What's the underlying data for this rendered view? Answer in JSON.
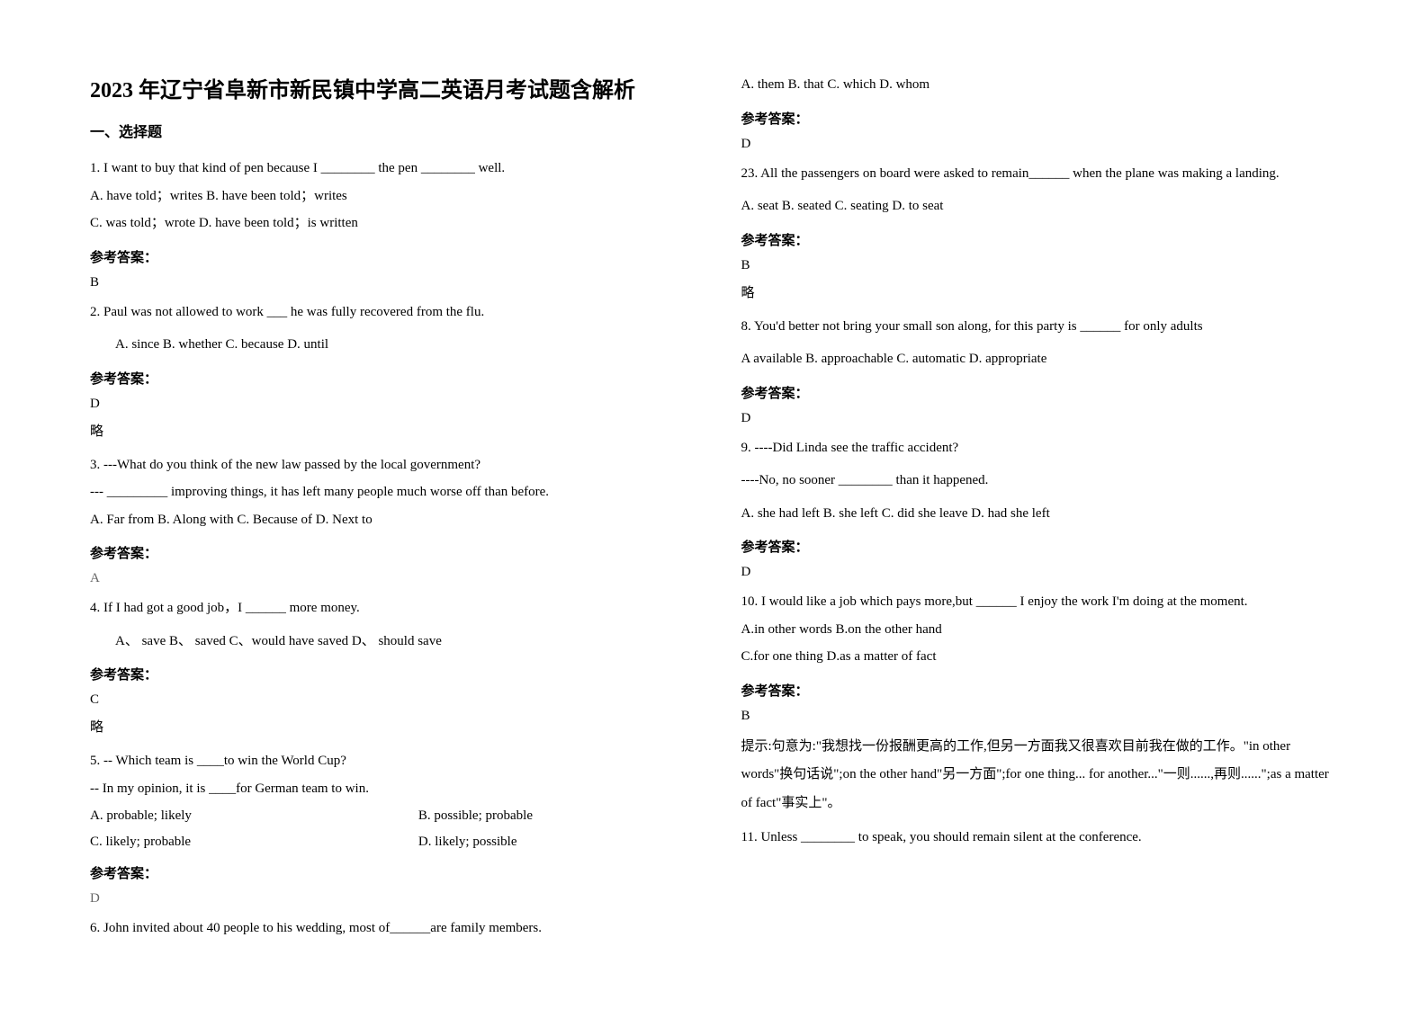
{
  "title": "2023 年辽宁省阜新市新民镇中学高二英语月考试题含解析",
  "section1": "一、选择题",
  "ans_label": "参考答案：",
  "略": "略",
  "left": {
    "q1": {
      "text": "1.  I want to buy that kind of pen because I ________ the pen ________ well.",
      "line2": "A. have told；writes   B. have been told；writes",
      "line3": "C. was told；wrote    D. have been told；is written",
      "ans": "B"
    },
    "q2": {
      "text": "2. Paul was not allowed to work ___ he was fully recovered from the flu.",
      "opts": "A. since         B. whether           C. because          D. until",
      "ans": "D"
    },
    "q3": {
      "text": "3. ---What do you think of the new law passed by the local government?",
      "line2": "    --- _________ improving things, it has left many people much worse off than before.",
      "opts": "    A. Far from                 B. Along with             C. Because of             D. Next to",
      "ans": "A"
    },
    "q4": {
      "text": "4. If I had got a good job，I ______ more money.",
      "opts": "A、 save             B、 saved        C、would have saved      D、 should save",
      "ans": "C"
    },
    "q5": {
      "text": "5. -- Which team is ____to win the World Cup?",
      "line2": "   -- In my opinion, it is ____for German team to win.",
      "optA": "     A. probable; likely",
      "optB": "B. possible; probable",
      "optC": "     C. likely; probable",
      "optD": "D. likely; possible",
      "ans": "D"
    },
    "q6": {
      "text": "6. John invited about 40 people to his wedding, most of______are family members."
    }
  },
  "right": {
    "q6opts": "   A. them        B. that   C. which         D. whom",
    "q6ans": "D",
    "q23": {
      "text": "23. All the passengers on board were asked to remain______ when the plane was making a landing.",
      "opts": "    A. seat            B. seated          C. seating          D. to seat",
      "ans": "B"
    },
    "q8": {
      "text": "8. You'd better not bring your small son along, for this party is ______ for only adults",
      "opts": "A available       B. approachable     C. automatic     D. appropriate",
      "ans": "D"
    },
    "q9": {
      "text": "9. ----Did Linda see the traffic accident?",
      "line2": "----No, no sooner ________ than it happened.",
      "opts": "A. she had left     B. she left            C. did she leave     D. had she left",
      "ans": "D"
    },
    "q10": {
      "text": "10. I would like a job which pays more,but ______ I enjoy the work I'm doing at the moment.",
      "line2": "A.in other words          B.on the other hand",
      "line3": "C.for one thing   D.as a matter of fact",
      "ans": "B",
      "expl": "提示:句意为:\"我想找一份报酬更高的工作,但另一方面我又很喜欢目前我在做的工作。\"in other words\"换句话说\";on the other hand\"另一方面\";for one thing... for another...\"一则......,再则......\";as a matter of fact\"事实上\"。"
    },
    "q11": {
      "text": "11. Unless ________ to speak, you should remain silent at the conference."
    }
  }
}
